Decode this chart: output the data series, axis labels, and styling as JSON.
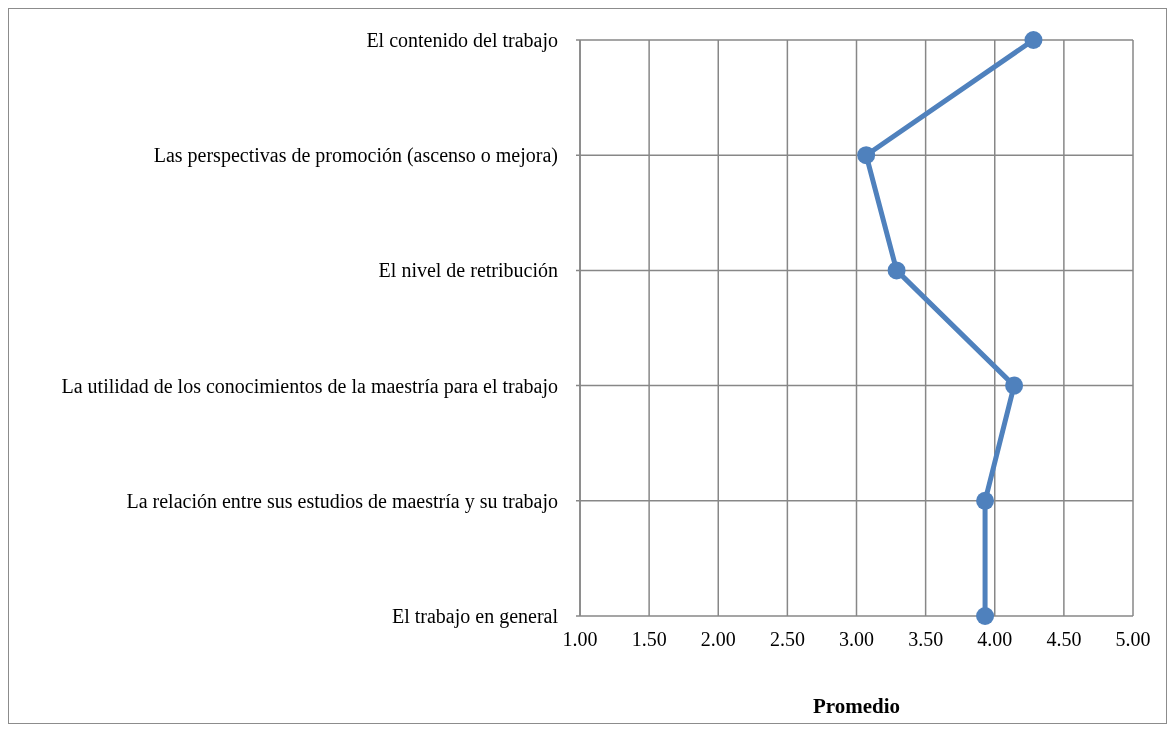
{
  "chart_data": {
    "type": "line",
    "orientation": "horizontal",
    "xlabel": "Promedio",
    "categories": [
      "El contenido del trabajo",
      "Las perspectivas de promoción (ascenso o mejora)",
      "El nivel de retribución",
      "La utilidad de los conocimientos de la maestría para el trabajo",
      "La relación entre sus estudios de maestría y su trabajo",
      "El trabajo en general"
    ],
    "series": [
      {
        "color": "#4f81bd",
        "values": [
          4.28,
          3.07,
          3.29,
          4.14,
          3.93,
          3.93
        ]
      }
    ],
    "xlim": [
      1,
      5
    ],
    "xticks": [
      {
        "value": 1,
        "label": "1.00"
      },
      {
        "value": 1.5,
        "label": "1.50"
      },
      {
        "value": 2,
        "label": "2.00"
      },
      {
        "value": 2.5,
        "label": "2.50"
      },
      {
        "value": 3,
        "label": "3.00"
      },
      {
        "value": 3.5,
        "label": "3.50"
      },
      {
        "value": 4,
        "label": "4.00"
      },
      {
        "value": 4.5,
        "label": "4.50"
      },
      {
        "value": 5,
        "label": "5.00"
      }
    ],
    "grid": true,
    "marker": "circle",
    "line_style": "solid"
  }
}
